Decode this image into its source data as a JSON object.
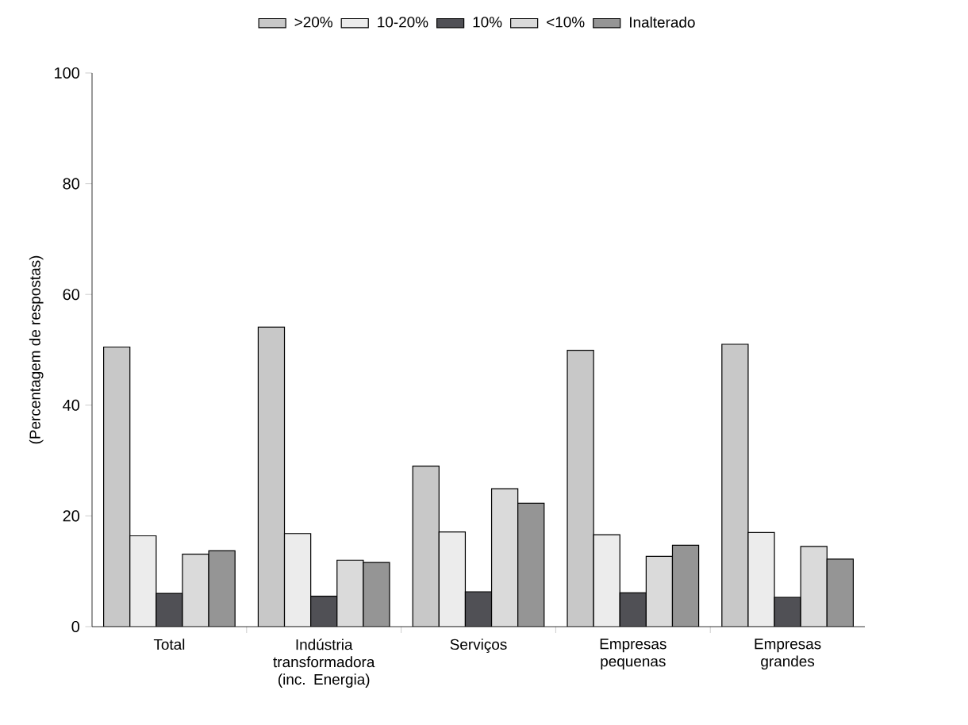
{
  "chart_data": {
    "type": "bar",
    "ylabel": "(Percentagem de respostas)",
    "categories": [
      "Total",
      "Indústria transformadora (inc. Energia)",
      "Serviços",
      "Empresas pequenas",
      "Empresas grandes"
    ],
    "series": [
      {
        "name": ">20%",
        "color": "#c8c8c8",
        "values": [
          50.5,
          54.1,
          29.0,
          49.9,
          51.0
        ]
      },
      {
        "name": "10-20%",
        "color": "#ececec",
        "values": [
          16.4,
          16.8,
          17.1,
          16.6,
          17.0
        ]
      },
      {
        "name": "10%",
        "color": "#505055",
        "values": [
          6.0,
          5.5,
          6.3,
          6.1,
          5.3
        ]
      },
      {
        "name": "<10%",
        "color": "#dadada",
        "values": [
          13.1,
          12.0,
          24.9,
          12.7,
          14.5
        ]
      },
      {
        "name": "Inalterado",
        "color": "#959595",
        "values": [
          13.7,
          11.6,
          22.3,
          14.7,
          12.2
        ]
      }
    ],
    "ylim": [
      0,
      100
    ],
    "yticks": [
      0,
      20,
      40,
      60,
      80,
      100
    ],
    "grid": false,
    "legend": "top"
  }
}
